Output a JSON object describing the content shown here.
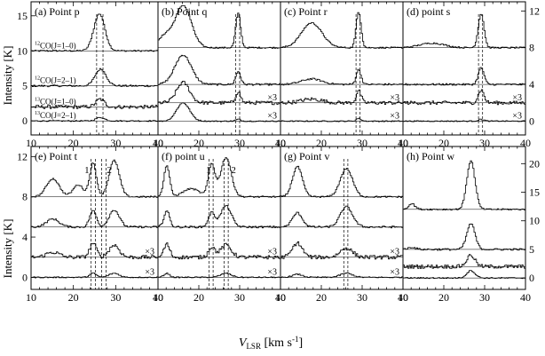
{
  "figure": {
    "ylabel": "Intensity [K]",
    "xlabel_main": "V",
    "xlabel_sub": "LSR",
    "xlabel_unit": " [km s",
    "xlabel_exp": "-1",
    "xlabel_close": "]"
  },
  "chart_data": {
    "type": "line",
    "xlim": [
      10,
      40
    ],
    "xticks": [
      10,
      20,
      30,
      40
    ],
    "lines": [
      {
        "iso": "12",
        "label": "CO(J=1–0)"
      },
      {
        "iso": "12",
        "label": "CO(J=2–1)"
      },
      {
        "iso": "13",
        "label": "CO(J=1–0)"
      },
      {
        "iso": "13",
        "label": "CO(J=2–1)"
      }
    ],
    "panels": [
      {
        "label": "(a) Point p",
        "row": 0,
        "ylim": [
          -2,
          17
        ],
        "yticks_left": [
          0,
          5,
          10,
          15
        ],
        "yticks_right": [],
        "offsets": [
          10,
          5,
          2,
          0
        ],
        "scale_labels": [
          "",
          "",
          "",
          ""
        ],
        "peak_labels": [],
        "vlines": [
          25.5,
          27
        ],
        "series": [
          {
            "peaks": [
              [
                26,
                5.3,
                1.3
              ]
            ]
          },
          {
            "peaks": [
              [
                26.3,
                2.4,
                1.3
              ]
            ]
          },
          {
            "peaks": [
              [
                26.2,
                1.1,
                1.0
              ]
            ]
          },
          {
            "peaks": [
              [
                26.2,
                0.5,
                1.0
              ]
            ]
          }
        ]
      },
      {
        "label": "(b) Point q",
        "row": 0,
        "ylim": [
          -1.5,
          13
        ],
        "yticks_left": [],
        "yticks_right": [],
        "offsets": [
          8,
          4,
          2,
          0
        ],
        "scale_labels": [
          "",
          "",
          "×3",
          "×3"
        ],
        "peak_labels": [],
        "vlines": [
          29,
          30
        ],
        "series": [
          {
            "peaks": [
              [
                16,
                4.6,
                2.0
              ],
              [
                29.5,
                3.7,
                0.6
              ],
              [
                11.5,
                1.2,
                1.5
              ]
            ]
          },
          {
            "peaks": [
              [
                16,
                3.2,
                2.0
              ],
              [
                29.5,
                1.4,
                0.6
              ]
            ]
          },
          {
            "peaks": [
              [
                16,
                2.2,
                1.6
              ],
              [
                29.5,
                1.2,
                0.6
              ]
            ]
          },
          {
            "peaks": [
              [
                16,
                2.0,
                1.6
              ],
              [
                29.5,
                0.2,
                0.6
              ]
            ]
          }
        ]
      },
      {
        "label": "(c) Point r",
        "row": 0,
        "ylim": [
          -1.5,
          13
        ],
        "yticks_left": [],
        "yticks_right": [],
        "offsets": [
          8,
          4,
          2,
          0
        ],
        "scale_labels": [
          "",
          "",
          "×3",
          "×3"
        ],
        "peak_labels": [],
        "vlines": [
          28.5,
          29.5
        ],
        "series": [
          {
            "peaks": [
              [
                17.5,
                2.7,
                2.5
              ],
              [
                29,
                3.9,
                0.6
              ]
            ]
          },
          {
            "peaks": [
              [
                17.5,
                0.6,
                2.5
              ],
              [
                29,
                1.6,
                0.6
              ]
            ]
          },
          {
            "peaks": [
              [
                17.5,
                0.4,
                2.5
              ],
              [
                29,
                1.3,
                0.6
              ]
            ]
          },
          {
            "peaks": [
              [
                29,
                0.3,
                0.6
              ]
            ]
          }
        ]
      },
      {
        "label": "(d) point s",
        "row": 0,
        "ylim": [
          -1.5,
          13
        ],
        "yticks_left": [],
        "yticks_right": [
          0,
          4,
          8,
          12
        ],
        "offsets": [
          8,
          4,
          2,
          0
        ],
        "scale_labels": [
          "",
          "",
          "×3",
          "×3"
        ],
        "peak_labels": [],
        "vlines": [
          28.5,
          29.5
        ],
        "series": [
          {
            "peaks": [
              [
                29,
                3.7,
                0.7
              ],
              [
                17,
                0.5,
                3.0
              ]
            ]
          },
          {
            "peaks": [
              [
                29,
                1.8,
                0.7
              ]
            ]
          },
          {
            "peaks": [
              [
                29,
                1.4,
                0.7
              ]
            ]
          },
          {
            "peaks": [
              [
                29,
                0.2,
                0.7
              ]
            ]
          }
        ]
      },
      {
        "label": "(e) Point t",
        "row": 1,
        "ylim": [
          -1.2,
          13
        ],
        "yticks_left": [
          0,
          4,
          8,
          12
        ],
        "yticks_right": [],
        "offsets": [
          8,
          5,
          2,
          0
        ],
        "scale_labels": [
          "",
          "",
          "×3",
          "×3"
        ],
        "peak_labels": [
          {
            "text": "1",
            "x": 23.2
          },
          {
            "text": "2",
            "x": 28.5
          }
        ],
        "vlines": [
          24.2,
          25.2,
          26.7,
          27.7
        ],
        "series": [
          {
            "peaks": [
              [
                15,
                1.8,
                1.5
              ],
              [
                24.5,
                3.3,
                0.8
              ],
              [
                29.5,
                3.6,
                1.2
              ],
              [
                21,
                1.2,
                1.2
              ]
            ]
          },
          {
            "peaks": [
              [
                15,
                0.8,
                1.5
              ],
              [
                24.5,
                1.6,
                0.8
              ],
              [
                29.5,
                1.7,
                1.2
              ]
            ]
          },
          {
            "peaks": [
              [
                24.5,
                1.4,
                0.8
              ],
              [
                29.5,
                1.2,
                1.2
              ],
              [
                15,
                0.5,
                1.5
              ]
            ]
          },
          {
            "peaks": [
              [
                24.5,
                0.4,
                0.8
              ],
              [
                29.5,
                0.4,
                1.2
              ]
            ]
          }
        ]
      },
      {
        "label": "(f) point u",
        "row": 1,
        "ylim": [
          -1.2,
          13
        ],
        "yticks_left": [],
        "yticks_right": [],
        "offsets": [
          8,
          5,
          2,
          0
        ],
        "scale_labels": [
          "",
          "",
          "×3",
          "×3"
        ],
        "peak_labels": [
          {
            "text": "1",
            "x": 22.3
          },
          {
            "text": "2",
            "x": 28.5
          }
        ],
        "vlines": [
          22.5,
          23.5,
          26.2,
          27.2
        ],
        "series": [
          {
            "peaks": [
              [
                12,
                3.1,
                0.7
              ],
              [
                23,
                3.2,
                0.8
              ],
              [
                26.5,
                3.9,
                1.3
              ],
              [
                18,
                0.8,
                2.0
              ]
            ]
          },
          {
            "peaks": [
              [
                12,
                1.6,
                0.7
              ],
              [
                23,
                1.4,
                0.8
              ],
              [
                26.5,
                2.1,
                1.3
              ]
            ]
          },
          {
            "peaks": [
              [
                12,
                1.3,
                0.7
              ],
              [
                23,
                1.0,
                0.8
              ],
              [
                26.5,
                1.2,
                1.3
              ]
            ]
          },
          {
            "peaks": [
              [
                12,
                0.4,
                0.7
              ],
              [
                26.5,
                0.4,
                1.3
              ]
            ]
          }
        ]
      },
      {
        "label": "(g) Point v",
        "row": 1,
        "ylim": [
          -1.2,
          13
        ],
        "yticks_left": [],
        "yticks_right": [],
        "offsets": [
          8,
          5,
          2,
          0
        ],
        "scale_labels": [
          "",
          "",
          "×3",
          "×3"
        ],
        "peak_labels": [],
        "vlines": [
          25.5,
          26.5
        ],
        "series": [
          {
            "peaks": [
              [
                14,
                3.0,
                1.2
              ],
              [
                26,
                2.8,
                1.5
              ]
            ]
          },
          {
            "peaks": [
              [
                14,
                1.4,
                1.2
              ],
              [
                26,
                2.0,
                1.5
              ]
            ]
          },
          {
            "peaks": [
              [
                14,
                1.4,
                1.2
              ],
              [
                26,
                0.9,
                1.5
              ]
            ]
          },
          {
            "peaks": [
              [
                14,
                0.3,
                1.2
              ],
              [
                26,
                0.4,
                1.5
              ]
            ]
          }
        ]
      },
      {
        "label": "(h) Point w",
        "row": 1,
        "ylim": [
          -2,
          23
        ],
        "yticks_left": [],
        "yticks_right": [
          0,
          5,
          10,
          15,
          20
        ],
        "offsets": [
          12,
          5,
          2,
          0
        ],
        "scale_labels": [
          "",
          "",
          "",
          ""
        ],
        "peak_labels": [],
        "vlines": [],
        "series": [
          {
            "peaks": [
              [
                26.5,
                8.5,
                1.0
              ],
              [
                12,
                1.0,
                0.8
              ]
            ]
          },
          {
            "peaks": [
              [
                26.5,
                4.5,
                1.0
              ],
              [
                12,
                0.4,
                0.8
              ]
            ]
          },
          {
            "peaks": [
              [
                26.5,
                2.0,
                1.0
              ]
            ]
          },
          {
            "peaks": [
              [
                26.5,
                1.3,
                1.0
              ]
            ]
          }
        ]
      }
    ]
  }
}
